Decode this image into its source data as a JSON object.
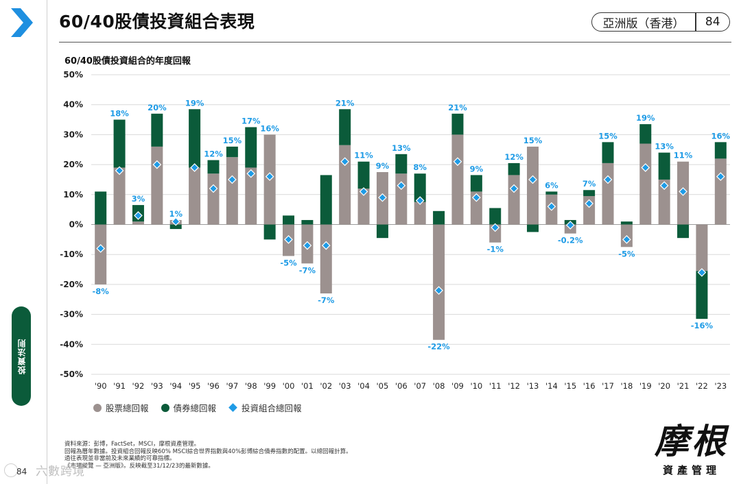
{
  "header": {
    "title": "60/40股債投資組合表現",
    "edition": "亞洲版（香港）",
    "page": "84"
  },
  "colors": {
    "stock": "#9c918f",
    "bond": "#0b5b3a",
    "portfolio": "#1e9be6",
    "label": "#1e9be6",
    "accent": "#1e9be6",
    "sidebar": "#0b5b3a"
  },
  "chart_data": {
    "type": "bar",
    "title": "60/40股債投資組合的年度回報",
    "ylim": [
      -50,
      50
    ],
    "yticks": [
      -50,
      -40,
      -30,
      -20,
      -10,
      0,
      10,
      20,
      30,
      40,
      50
    ],
    "ytick_labels": [
      "-50%",
      "-40%",
      "-30%",
      "-20%",
      "-10%",
      "0%",
      "10%",
      "20%",
      "30%",
      "40%",
      "50%"
    ],
    "categories": [
      "'90",
      "'91",
      "'92",
      "'93",
      "'94",
      "'95",
      "'96",
      "'97",
      "'98",
      "'99",
      "'00",
      "'01",
      "'02",
      "'03",
      "'04",
      "'05",
      "'06",
      "'07",
      "'08",
      "'09",
      "'10",
      "'11",
      "'12",
      "'13",
      "'14",
      "'15",
      "'16",
      "'17",
      "'18",
      "'19",
      "'20",
      "'21",
      "'22",
      "'23"
    ],
    "series": [
      {
        "name": "股票總回報",
        "values": [
          -20,
          19,
          1,
          26,
          1.5,
          19,
          17,
          22.5,
          19,
          30,
          -10.5,
          -13,
          -23,
          26.5,
          12,
          17.5,
          17,
          7.5,
          -38.5,
          30,
          11,
          -6,
          16.5,
          26,
          10,
          -3,
          9.5,
          20.5,
          -7.5,
          27,
          15,
          21,
          -15.5,
          22
        ]
      },
      {
        "name": "債券總回報",
        "values": [
          11,
          16,
          5.5,
          11,
          -1.5,
          19.5,
          4.5,
          3.5,
          13.5,
          -5,
          3,
          1.5,
          16.5,
          12,
          9,
          -4.5,
          6.5,
          9.5,
          4.5,
          7,
          5.5,
          5.5,
          4,
          -2.5,
          1,
          1.5,
          2,
          7,
          1,
          6.5,
          9,
          -4.5,
          -16,
          5.5
        ]
      },
      {
        "name": "投資組合總回報",
        "values": [
          -8,
          18,
          3,
          20,
          1,
          19,
          12,
          15,
          17,
          16,
          -5,
          -7,
          -7,
          21,
          11,
          9,
          13,
          8,
          -22,
          21,
          9,
          -1,
          12,
          15,
          6,
          -0.2,
          7,
          15,
          -5,
          19,
          13,
          11,
          -16,
          16
        ]
      }
    ],
    "data_labels": [
      "-8%",
      "18%",
      "3%",
      "20%",
      "1%",
      "19%",
      "12%",
      "15%",
      "17%",
      "16%",
      "-5%",
      "-7%",
      "-7%",
      "21%",
      "11%",
      "9%",
      "13%",
      "8%",
      "-22%",
      "21%",
      "9%",
      "-1%",
      "12%",
      "15%",
      "6%",
      "-0.2%",
      "7%",
      "15%",
      "-5%",
      "19%",
      "13%",
      "11%",
      "-16%",
      "16%"
    ],
    "legend": [
      "股票總回報",
      "債券總回報",
      "投資組合總回報"
    ]
  },
  "footnotes": [
    "資料來源：彭博，FactSet，MSCI，摩根資產管理。",
    "回報為曆年數據。投資組合回報反映60% MSCI綜合世界指數與40%彭博綜合債券指數的配置。以總回報計算。",
    "過往表現並非當前及未來業績的可靠指標。",
    "《市場縱覽 — 亞洲版》。反映截至31/12/23的最新數據。"
  ],
  "sidebar": {
    "tab_label": "投資法則",
    "page_number": "84"
  },
  "watermark": "六數跨境",
  "logo": {
    "glyph": "摩根",
    "subtitle": "資產管理"
  }
}
